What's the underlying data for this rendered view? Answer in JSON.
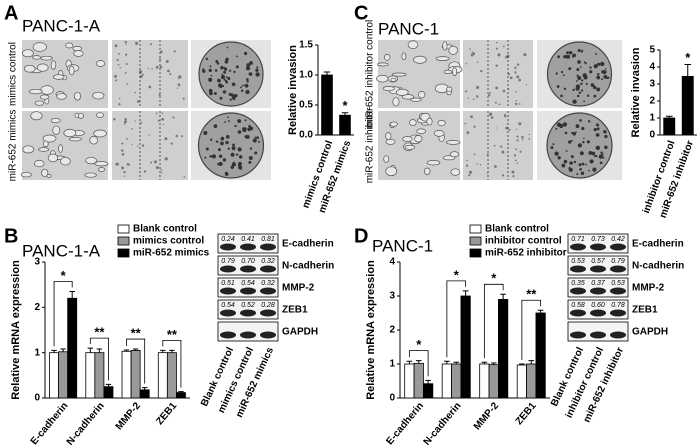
{
  "panel_labels": [
    "A",
    "C",
    "B",
    "D"
  ],
  "images": [
    {
      "title": "PANC-1-A",
      "rows": [
        "mimics control",
        "miR-652 mimics"
      ]
    },
    {
      "title": "PANC-1",
      "rows": [
        "miR-652 inhibitor control",
        "miR-652 inhibitor"
      ]
    }
  ],
  "blots": [
    {
      "proteins": [
        "E-cadherin",
        "N-cadherin",
        "MMP-2",
        "ZEB1",
        "GAPDH"
      ],
      "lanes": [
        "Blank control",
        "mimics control",
        "miR-652 mimics"
      ],
      "quant": [
        [
          "0.24",
          "0.41",
          "0.81"
        ],
        [
          "0.79",
          "0.70",
          "0.32"
        ],
        [
          "0.51",
          "0.54",
          "0.32"
        ],
        [
          "0.54",
          "0.52",
          "0.28"
        ]
      ]
    },
    {
      "proteins": [
        "E-cadherin",
        "N-cadherin",
        "MMP-2",
        "ZEB1",
        "GAPDH"
      ],
      "lanes": [
        "Blank control",
        "inhibitor control",
        "miR-652 inhibitor"
      ],
      "quant": [
        [
          "0.71",
          "0.73",
          "0.42"
        ],
        [
          "0.53",
          "0.57",
          "0.79"
        ],
        [
          "0.35",
          "0.37",
          "0.53"
        ],
        [
          "0.58",
          "0.60",
          "0.78"
        ]
      ]
    }
  ],
  "chart_data": [
    {
      "type": "bar",
      "ylabel": "Relative invasion",
      "categories": [
        "mimics control",
        "miR-652 mimics"
      ],
      "series": [
        {
          "color": "#000000",
          "values": [
            1.0,
            0.33
          ],
          "errors": [
            0.05,
            0.04
          ]
        }
      ],
      "significance": [
        null,
        "*"
      ],
      "ylim": [
        0,
        1.5
      ],
      "yticks": [
        {
          "value": 0,
          "label": "0.0"
        },
        0.5,
        {
          "value": 1,
          "label": "1.0"
        },
        1.5
      ]
    },
    {
      "type": "bar",
      "ylabel": "Relative invasion",
      "categories": [
        "inhibitor control",
        "miR-652 inhibitor"
      ],
      "series": [
        {
          "color": "#000000",
          "values": [
            1.0,
            3.45
          ],
          "errors": [
            0.1,
            0.7
          ]
        }
      ],
      "significance": [
        null,
        "*"
      ],
      "ylim": [
        0,
        5
      ],
      "yticks": [
        0,
        1,
        2,
        3,
        4,
        5
      ]
    },
    {
      "type": "bar",
      "title": "PANC-1-A",
      "ylabel": "Relative mRNA expression",
      "categories": [
        "E-cadherin",
        "N-cadherin",
        "MMP-2",
        "ZEB1"
      ],
      "series": [
        {
          "name": "Blank control",
          "color": "#ffffff",
          "values": [
            1.0,
            1.0,
            1.03,
            1.0
          ],
          "errors": [
            0.05,
            0.1,
            0.03,
            0.05
          ]
        },
        {
          "name": "mimics control",
          "color": "#999999",
          "values": [
            1.02,
            1.0,
            1.05,
            1.0
          ],
          "errors": [
            0.06,
            0.08,
            0.03,
            0.05
          ]
        },
        {
          "name": "miR-652 mimics",
          "color": "#000000",
          "values": [
            2.2,
            0.25,
            0.18,
            0.12
          ],
          "errors": [
            0.15,
            0.05,
            0.05,
            0.02
          ]
        }
      ],
      "significance": [
        "*",
        "**",
        "**",
        "**"
      ],
      "ylim": [
        0,
        3
      ],
      "yticks": [
        0,
        1,
        2,
        3
      ]
    },
    {
      "type": "bar",
      "title": "PANC-1",
      "ylabel": "Relative mRNA expression",
      "categories": [
        "E-cadherin",
        "N-cadherin",
        "MMP-2",
        "ZEB1"
      ],
      "series": [
        {
          "name": "Blank control",
          "color": "#ffffff",
          "values": [
            1.0,
            1.0,
            1.0,
            0.97
          ],
          "errors": [
            0.08,
            0.08,
            0.05,
            0.03
          ]
        },
        {
          "name": "inhibitor control",
          "color": "#999999",
          "values": [
            1.02,
            1.0,
            0.98,
            1.0
          ],
          "errors": [
            0.08,
            0.05,
            0.05,
            0.1
          ]
        },
        {
          "name": "miR-652 inhibitor",
          "color": "#000000",
          "values": [
            0.42,
            3.0,
            2.9,
            2.5
          ],
          "errors": [
            0.1,
            0.15,
            0.15,
            0.08
          ]
        }
      ],
      "significance": [
        "*",
        "*",
        "*",
        "**"
      ],
      "ylim": [
        0,
        4
      ],
      "yticks": [
        0,
        1,
        2,
        3,
        4
      ]
    }
  ]
}
